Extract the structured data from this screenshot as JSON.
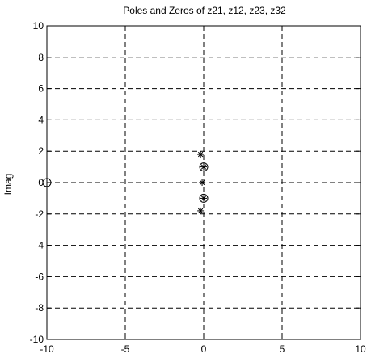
{
  "chart_data": {
    "type": "scatter",
    "title": "Poles and Zeros of z21, z12, z23, z32",
    "xlabel": "",
    "ylabel": "Imag",
    "xlim": [
      -10,
      10
    ],
    "ylim": [
      -10,
      10
    ],
    "xticks": [
      -10,
      -5,
      0,
      5,
      10
    ],
    "yticks": [
      -10,
      -8,
      -6,
      -4,
      -2,
      0,
      2,
      4,
      6,
      8,
      10
    ],
    "grid": true,
    "series": [
      {
        "marker": "asterisk",
        "points": [
          {
            "x": -0.2,
            "y": 1.8
          },
          {
            "x": 0,
            "y": 1.0
          },
          {
            "x": -0.1,
            "y": 0
          },
          {
            "x": 0,
            "y": -1.0
          },
          {
            "x": -0.2,
            "y": -1.8
          }
        ]
      },
      {
        "marker": "circle",
        "points": [
          {
            "x": -10,
            "y": 0
          },
          {
            "x": 0,
            "y": 1.0
          },
          {
            "x": 0,
            "y": -1.0
          }
        ]
      }
    ],
    "color": "#000000"
  }
}
